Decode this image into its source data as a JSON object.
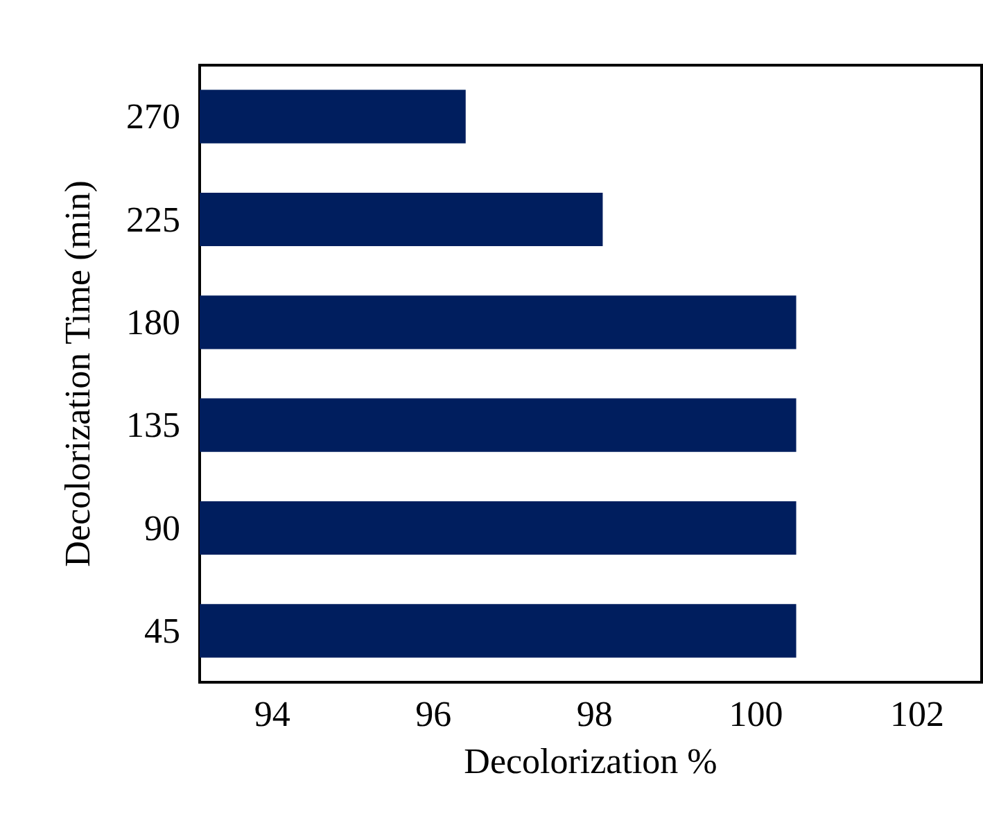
{
  "chart_data": {
    "type": "bar",
    "orientation": "horizontal",
    "xlabel": "Decolorization %",
    "ylabel": "Decolorization Time (min)",
    "categories": [
      "270",
      "225",
      "180",
      "135",
      "90",
      "45"
    ],
    "series": [
      {
        "color": "#001e5e",
        "values": [
          96.4,
          98.1,
          100.5,
          100.5,
          100.5,
          100.5
        ]
      }
    ],
    "xlim": [
      93.1,
      102.8
    ],
    "xticks": [
      94,
      96,
      98,
      100,
      102
    ]
  }
}
